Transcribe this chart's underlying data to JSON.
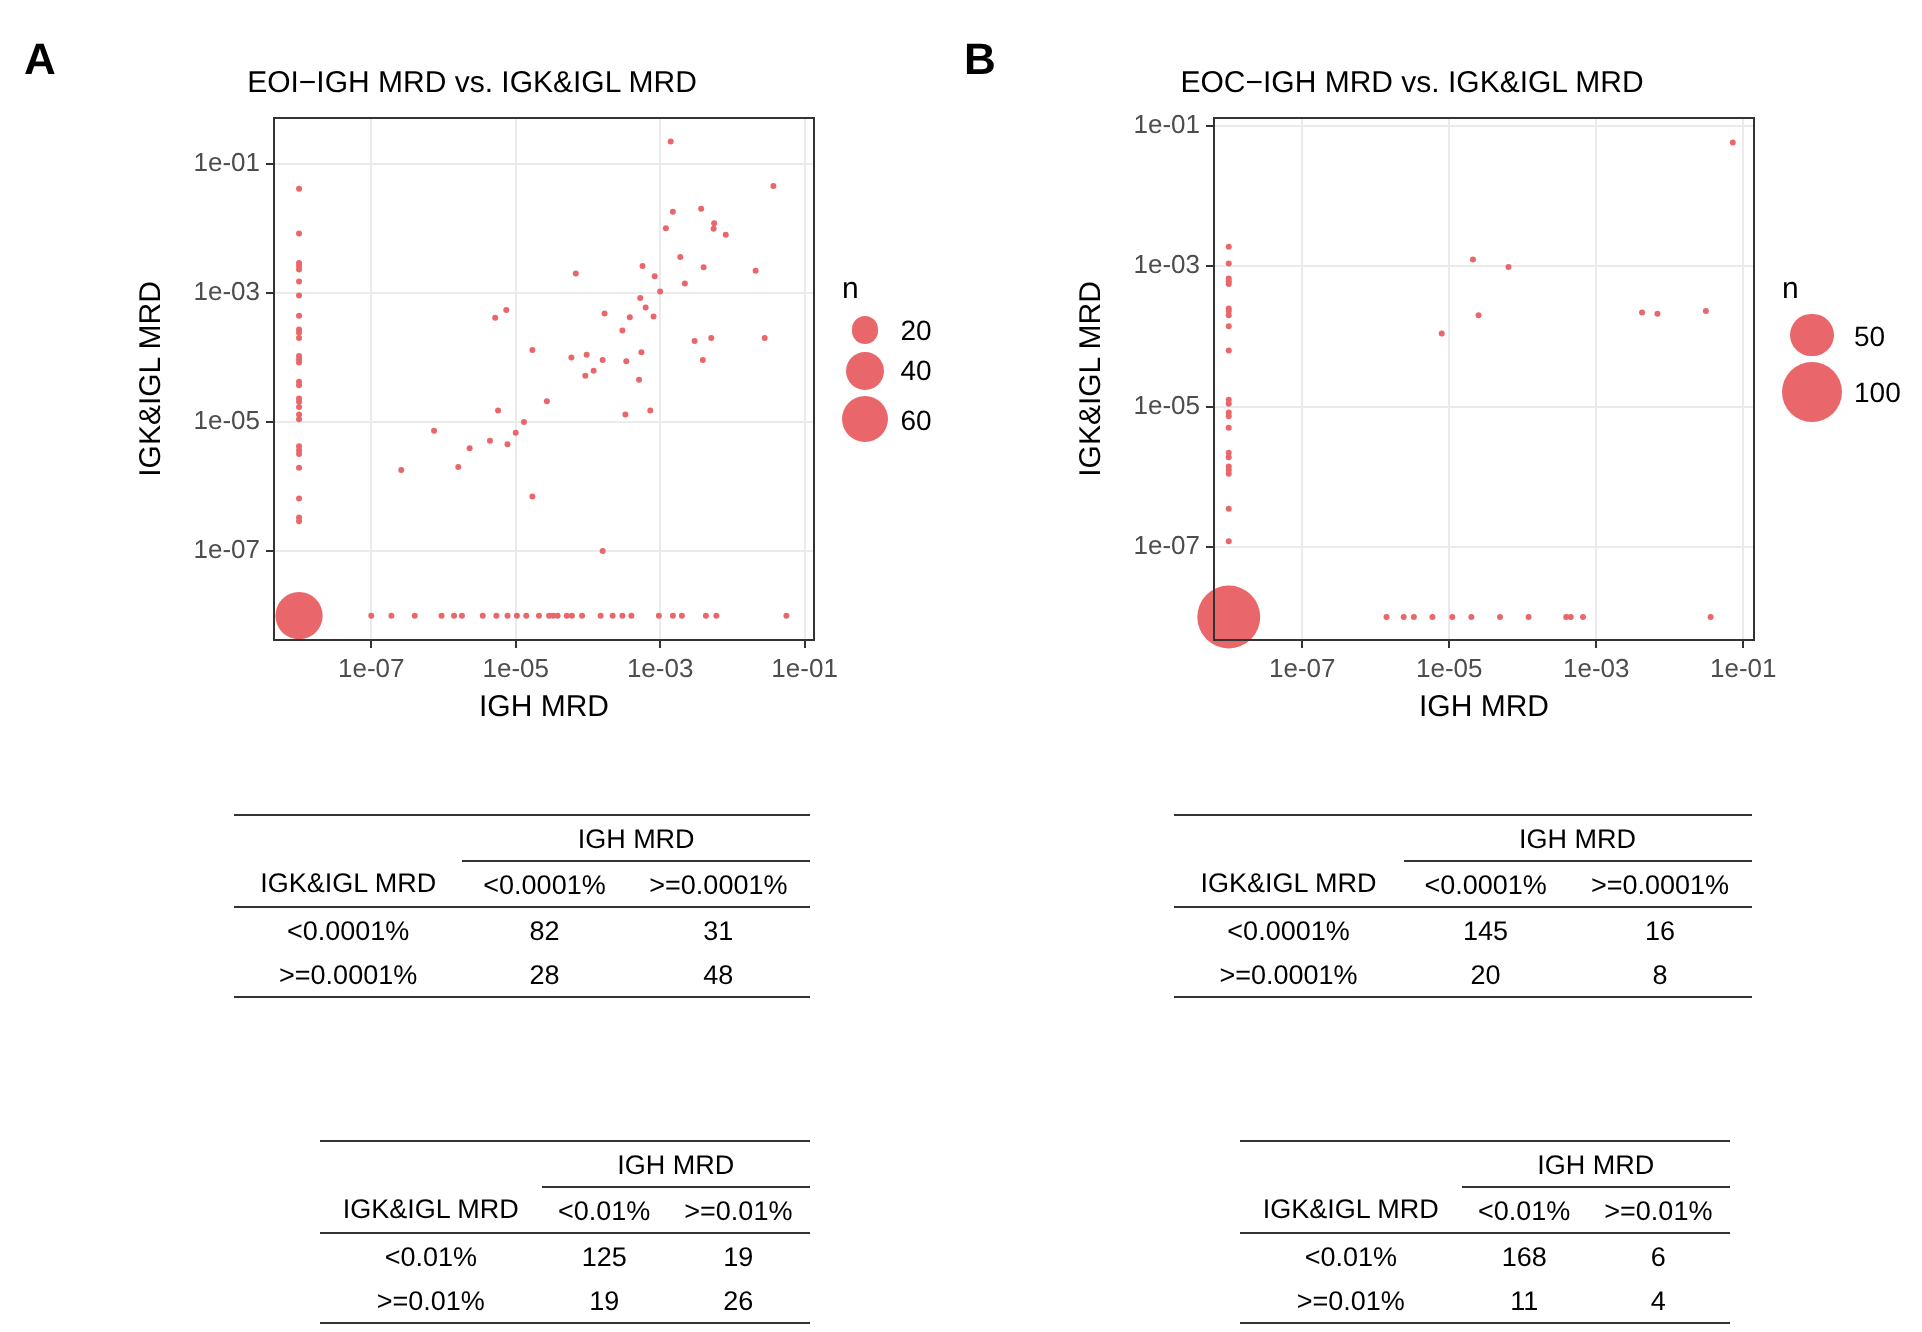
{
  "chart_data": [
    {
      "type": "bubble",
      "title": "EOI−IGH MRD vs. IGK&IGL MRD",
      "xlabel": "IGH MRD",
      "ylabel": "IGK&IGL MRD",
      "legend_title": "n",
      "annotations": [
        "A"
      ],
      "log": "xy",
      "grid": true,
      "size_legend": [
        20,
        40,
        60
      ],
      "xlim": [
        4.5e-09,
        0.135
      ],
      "ylim": [
        4.2e-09,
        0.51
      ],
      "xticks": [
        {
          "value": 1e-07,
          "label": "1e-07"
        },
        {
          "value": 1e-05,
          "label": "1e-05"
        },
        {
          "value": 0.001,
          "label": "1e-03"
        },
        {
          "value": 0.1,
          "label": "1e-01"
        }
      ],
      "yticks": [
        {
          "value": 1e-07,
          "label": "1e-07"
        },
        {
          "value": 1e-05,
          "label": "1e-05"
        },
        {
          "value": 0.001,
          "label": "1e-03"
        },
        {
          "value": 0.1,
          "label": "1e-01"
        }
      ],
      "series": [
        {
          "color": "#e9676a",
          "x": [
            1e-08,
            1e-08,
            1e-08,
            1e-08,
            1e-08,
            1e-08,
            1e-08,
            1e-08,
            1e-08,
            1e-08,
            1e-08,
            1e-08,
            1e-08,
            1e-08,
            1e-08,
            1e-08,
            1e-08,
            1e-08,
            1e-08,
            1e-08,
            1e-08,
            1e-08,
            1e-08,
            1e-08,
            1e-08,
            1e-08,
            1e-08,
            1e-08,
            1e-08,
            1e-07,
            1.9e-07,
            4e-07,
            9.4e-07,
            1.4e-06,
            1.8e-06,
            3.5e-06,
            5.4e-06,
            7.7e-06,
            1.04e-05,
            1.4e-05,
            2.1e-05,
            2.9e-05,
            3.3e-05,
            3.8e-05,
            5.1e-05,
            6e-05,
            8.3e-05,
            0.00015,
            0.00022,
            0.0003,
            0.0004,
            0.00096,
            0.0015,
            0.002,
            0.0043,
            0.006,
            0.056,
            0.0014,
            0.037,
            0.0015,
            0.0037,
            0.0012,
            0.0056,
            0.0055,
            0.0081,
            6.8e-05,
            0.0019,
            0.00057,
            0.004,
            0.021,
            0.00084,
            0.0022,
            0.001,
            0.00053,
            0.00063,
            7.4e-06,
            5.2e-06,
            0.00017,
            0.00038,
            0.00081,
            0.0003,
            1.7e-05,
            5.9e-05,
            9.6e-05,
            0.00016,
            0.00034,
            0.00055,
            0.003,
            0.0051,
            0.0039,
            0.028,
            0.00051,
            9.2e-05,
            0.00012,
            2.7e-05,
            5.7e-06,
            0.00033,
            0.00073,
            1.3e-05,
            7.4e-07,
            1e-05,
            4.4e-06,
            7.7e-06,
            2.3e-06,
            2.6e-07,
            1.6e-06,
            1.7e-05,
            0.00016
          ],
          "values": [
            0.041,
            0.0083,
            0.0029,
            0.0026,
            0.0023,
            0.0015,
            0.00091,
            0.00044,
            0.00027,
            0.00024,
            0.0002,
            0.000105,
            9.3e-05,
            8.3e-05,
            4.2e-05,
            3.7e-05,
            2.3e-05,
            2.05e-05,
            1.7e-05,
            1.3e-05,
            1.1e-05,
            4.2e-06,
            3.65e-06,
            3.2e-06,
            1.96e-06,
            6.5e-07,
            3.3e-07,
            2.9e-07,
            1e-08,
            1e-08,
            1e-08,
            1e-08,
            1e-08,
            1e-08,
            1e-08,
            1e-08,
            1e-08,
            1e-08,
            1e-08,
            1e-08,
            1e-08,
            1e-08,
            1e-08,
            1e-08,
            1e-08,
            1e-08,
            1e-08,
            1e-08,
            1e-08,
            1e-08,
            1e-08,
            1e-08,
            1e-08,
            1e-08,
            1e-08,
            1e-08,
            1e-08,
            0.22,
            0.045,
            0.018,
            0.02,
            0.01,
            0.012,
            0.0098,
            0.0079,
            0.002,
            0.0036,
            0.0026,
            0.0025,
            0.0022,
            0.0018,
            0.0014,
            0.00105,
            0.00083,
            0.00059,
            0.00054,
            0.00041,
            0.00048,
            0.00042,
            0.00043,
            0.00026,
            0.00013,
            0.0001,
            0.00011,
            9.1e-05,
            8.7e-05,
            0.00012,
            0.00018,
            0.0002,
            9.1e-05,
            0.0002,
            4.5e-05,
            5.2e-05,
            6.2e-05,
            2.1e-05,
            1.5e-05,
            1.3e-05,
            1.5e-05,
            1e-05,
            7.3e-06,
            6.8e-06,
            5.1e-06,
            4.5e-06,
            3.9e-06,
            1.8e-06,
            2e-06,
            7e-07,
            1e-07
          ],
          "sizes": [
            1,
            1,
            1,
            1,
            1,
            1,
            1,
            1,
            1,
            1,
            1,
            1,
            1,
            1,
            1,
            1,
            1,
            1,
            1,
            1,
            1,
            1,
            1,
            1,
            1,
            1,
            1,
            1,
            62,
            1,
            1,
            1,
            1,
            1,
            1,
            1,
            1,
            1,
            1,
            1,
            1,
            1,
            1,
            1,
            1,
            1,
            1,
            1,
            1,
            1,
            1,
            1,
            1,
            1,
            1,
            1,
            1,
            1,
            1,
            1,
            1,
            1,
            1,
            1,
            1,
            1,
            1,
            1,
            1,
            1,
            1,
            1,
            1,
            1,
            1,
            1,
            1,
            1,
            1,
            1,
            1,
            1,
            1,
            1,
            1,
            1,
            1,
            1,
            1,
            1,
            1,
            1,
            1,
            1,
            1,
            1,
            1,
            1,
            1,
            1,
            1,
            1,
            1,
            1,
            1,
            1,
            1,
            1
          ]
        }
      ]
    },
    {
      "type": "bubble",
      "title": "EOC−IGH MRD vs. IGK&IGL MRD",
      "xlabel": "IGH MRD",
      "ylabel": "IGK&IGL MRD",
      "legend_title": "n",
      "annotations": [
        "B"
      ],
      "log": "xy",
      "grid": true,
      "size_legend": [
        50,
        100
      ],
      "xlim": [
        6.3e-09,
        0.14
      ],
      "ylim": [
        4.7e-09,
        0.13
      ],
      "xticks": [
        {
          "value": 1e-07,
          "label": "1e-07"
        },
        {
          "value": 1e-05,
          "label": "1e-05"
        },
        {
          "value": 0.001,
          "label": "1e-03"
        },
        {
          "value": 0.1,
          "label": "1e-01"
        }
      ],
      "yticks": [
        {
          "value": 1e-07,
          "label": "1e-07"
        },
        {
          "value": 1e-05,
          "label": "1e-05"
        },
        {
          "value": 0.001,
          "label": "1e-03"
        },
        {
          "value": 0.1,
          "label": "1e-01"
        }
      ],
      "series": [
        {
          "color": "#e9676a",
          "x": [
            1e-08,
            1e-08,
            1e-08,
            1e-08,
            1e-08,
            1e-08,
            1e-08,
            1e-08,
            1e-08,
            1e-08,
            1e-08,
            1e-08,
            1e-08,
            1e-08,
            1e-08,
            1e-08,
            1e-08,
            1e-08,
            1e-08,
            1e-08,
            1e-08,
            1e-08,
            1e-08,
            1.4e-06,
            2.4e-06,
            3.3e-06,
            5.9e-06,
            1.1e-05,
            2e-05,
            4.9e-05,
            0.00012,
            0.00039,
            0.00045,
            0.00066,
            0.036,
            0.072,
            2.1e-05,
            6.4e-05,
            7.9e-06,
            2.5e-05,
            0.0042,
            0.0068,
            0.031
          ],
          "values": [
            0.0019,
            0.0011,
            0.00067,
            0.00061,
            0.00056,
            0.00025,
            0.00023,
            0.0002,
            0.00014,
            6.3e-05,
            1.25e-05,
            1.1e-05,
            8.2e-06,
            7.3e-06,
            5e-06,
            2.2e-06,
            1.9e-06,
            1.4e-06,
            1.25e-06,
            1.1e-06,
            3.5e-07,
            1.2e-07,
            1e-08,
            1e-08,
            1e-08,
            1e-08,
            1e-08,
            1e-08,
            1e-08,
            1e-08,
            1e-08,
            1e-08,
            1e-08,
            1e-08,
            1e-08,
            0.058,
            0.00125,
            0.00098,
            0.00011,
            0.0002,
            0.00022,
            0.00021,
            0.00023
          ],
          "sizes": [
            1,
            1,
            1,
            1,
            1,
            1,
            1,
            1,
            1,
            1,
            1,
            1,
            1,
            1,
            1,
            1,
            1,
            1,
            1,
            1,
            1,
            1,
            110,
            1,
            1,
            1,
            1,
            1,
            1,
            1,
            1,
            1,
            1,
            1,
            1,
            1,
            1,
            1,
            1,
            1,
            1,
            1,
            1
          ]
        }
      ]
    },
    {
      "type": "heatmap",
      "xlabel": "IGH MRD",
      "ylabel": "IGK&IGL MRD",
      "data_labels": true,
      "categories": [
        "<0.0001%",
        ">=0.0001%"
      ],
      "y_categories": [
        "<0.0001%",
        ">=0.0001%"
      ],
      "cells": [
        [
          82,
          31
        ],
        [
          28,
          48
        ]
      ]
    },
    {
      "type": "heatmap",
      "xlabel": "IGH MRD",
      "ylabel": "IGK&IGL MRD",
      "data_labels": true,
      "categories": [
        "<0.0001%",
        ">=0.0001%"
      ],
      "y_categories": [
        "<0.0001%",
        ">=0.0001%"
      ],
      "cells": [
        [
          145,
          16
        ],
        [
          20,
          8
        ]
      ]
    },
    {
      "type": "heatmap",
      "xlabel": "IGH MRD",
      "ylabel": "IGK&IGL MRD",
      "data_labels": true,
      "categories": [
        "<0.01%",
        ">=0.01%"
      ],
      "y_categories": [
        "<0.01%",
        ">=0.01%"
      ],
      "cells": [
        [
          125,
          19
        ],
        [
          19,
          26
        ]
      ]
    },
    {
      "type": "heatmap",
      "xlabel": "IGH MRD",
      "ylabel": "IGK&IGL MRD",
      "data_labels": true,
      "categories": [
        "<0.01%",
        ">=0.01%"
      ],
      "y_categories": [
        "<0.01%",
        ">=0.01%"
      ],
      "cells": [
        [
          168,
          6
        ],
        [
          11,
          4
        ]
      ]
    }
  ]
}
